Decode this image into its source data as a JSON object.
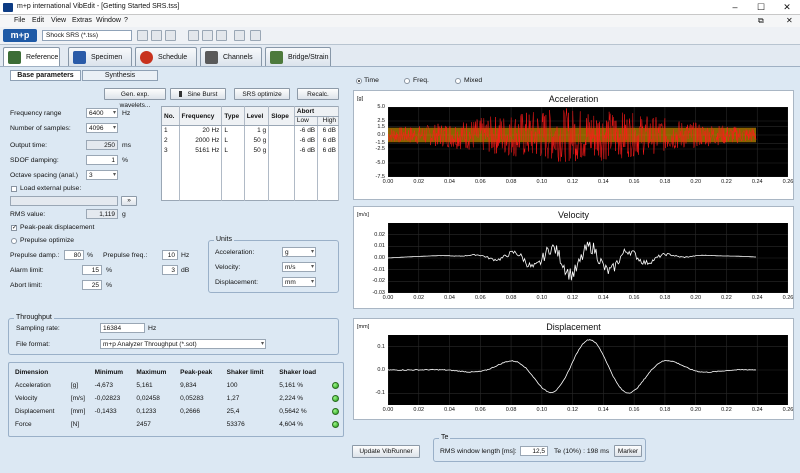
{
  "window": {
    "title": "m+p international VibEdit - [Getting Started SRS.tss]",
    "min": "–",
    "max": "☐",
    "close": "✕",
    "restore": "⧉",
    "mdi_close": "✕"
  },
  "menu": [
    "File",
    "Edit",
    "View",
    "Extras",
    "Window",
    "?"
  ],
  "toolbar": {
    "logo": "m+p",
    "combo": "Shock SRS (*.tss)"
  },
  "nav_tabs": [
    {
      "label": "Reference",
      "icon": "reference-icon"
    },
    {
      "label": "Specimen",
      "icon": "specimen-icon"
    },
    {
      "label": "Schedule",
      "icon": "schedule-icon"
    },
    {
      "label": "Channels",
      "icon": "channels-icon"
    },
    {
      "label": "Bridge/Strain",
      "icon": "bridge-strain-icon"
    }
  ],
  "subtabs": {
    "base": "Base parameters",
    "synthesis": "Synthesis"
  },
  "actions": {
    "gen_wavelets": "Gen. exp. wavelets...",
    "sine_burst": "Sine Burst",
    "srs_optimize": "SRS optimize",
    "recalc": "Recalc."
  },
  "params": {
    "freq_range_label": "Frequency range",
    "freq_range_value": "6400",
    "freq_range_unit": "Hz",
    "samples_label": "Number of samples:",
    "samples_value": "4096",
    "output_time_label": "Output time:",
    "output_time_value": "250",
    "output_time_unit": "ms",
    "sdof_label": "SDOF damping:",
    "sdof_value": "1",
    "sdof_unit": "%",
    "octave_label": "Octave spacing (anal.)",
    "octave_value": "3",
    "load_pulse_label": "Load external pulse:",
    "rms_label": "RMS value:",
    "rms_value": "1,119",
    "rms_unit": "g",
    "peak_label": "Peak-peak displacement",
    "prepulse_opt_label": "Prepulse optimize",
    "prepulse_damp_label": "Prepulse damp.:",
    "prepulse_damp_value": "80",
    "prepulse_damp_unit": "%",
    "prepulse_freq_label": "Prepulse freq.:",
    "prepulse_freq_value": "10",
    "prepulse_freq_unit": "Hz",
    "alarm_label": "Alarm limit:",
    "alarm_value": "15",
    "alarm_unit": "%",
    "alarm_db_value": "3",
    "alarm_db_unit": "dB",
    "abort_label": "Abort limit:",
    "abort_value": "25",
    "abort_unit": "%"
  },
  "units": {
    "title": "Units",
    "acc_label": "Acceleration:",
    "acc_value": "g",
    "vel_label": "Velocity:",
    "vel_value": "m/s",
    "disp_label": "Displacement:",
    "disp_value": "mm"
  },
  "band_table": {
    "headers": [
      "No.",
      "Frequency",
      "Type",
      "Level",
      "Slope",
      "Abort"
    ],
    "subheaders": [
      "Low",
      "High"
    ],
    "rows": [
      [
        "1",
        "20 Hz",
        "L",
        "1 g",
        "",
        "-6 dB",
        "6 dB"
      ],
      [
        "2",
        "2000 Hz",
        "L",
        "50 g",
        "",
        "-6 dB",
        "6 dB"
      ],
      [
        "3",
        "5161 Hz",
        "L",
        "50 g",
        "",
        "-6 dB",
        "6 dB"
      ]
    ]
  },
  "throughput": {
    "title": "Throughput",
    "rate_label": "Sampling rate:",
    "rate_value": "16384",
    "rate_unit": "Hz",
    "format_label": "File format:",
    "format_value": "m+p Analyzer Throughput (*.sot)"
  },
  "dim_table": {
    "headers": [
      "Dimension",
      "",
      "Minimum",
      "Maximum",
      "Peak-peak",
      "Shaker limit",
      "Shaker load"
    ],
    "rows": [
      [
        "Acceleration",
        "[g]",
        "-4,673",
        "5,161",
        "9,834",
        "100",
        "5,161 %"
      ],
      [
        "Velocity",
        "[m/s]",
        "-0,02823",
        "0,02458",
        "0,05283",
        "1,27",
        "2,224 %"
      ],
      [
        "Displacement",
        "[mm]",
        "-0,1433",
        "0,1233",
        "0,2666",
        "25,4",
        "0,5642 %"
      ],
      [
        "Force",
        "[N]",
        "",
        "2457",
        "",
        "53376",
        "4,604 %"
      ]
    ]
  },
  "view_mode": {
    "time": "Time",
    "freq": "Freq.",
    "mixed": "Mixed",
    "selected": "Time"
  },
  "charts": [
    {
      "title": "Acceleration",
      "unit": "[g]",
      "yticks": [
        "5.0",
        "2.5",
        "1.5",
        "0.0",
        "-1.5",
        "-2.5",
        "-5.0",
        "-7.5"
      ],
      "ylim": [
        -7.5,
        5.0
      ]
    },
    {
      "title": "Velocity",
      "unit": "[m/s]",
      "yticks": [
        "0.02",
        "0.01",
        "0.00",
        "-0.01",
        "-0.02",
        "-0.03"
      ],
      "ylim": [
        -0.03,
        0.03
      ]
    },
    {
      "title": "Displacement",
      "unit": "[mm]",
      "yticks": [
        "0.1",
        "0.0",
        "-0.1"
      ],
      "ylim": [
        -0.15,
        0.15
      ]
    }
  ],
  "xticks": [
    "0.00",
    "0.02",
    "0.04",
    "0.06",
    "0.08",
    "0.10",
    "0.12",
    "0.14",
    "0.16",
    "0.18",
    "0.20",
    "0.22",
    "0.24",
    "0.26"
  ],
  "xlim": [
    0.0,
    0.26
  ],
  "bottom": {
    "update": "Update VibRunner",
    "te_title": "Te",
    "rms_win_label": "RMS window length [ms]:",
    "rms_win_value": "12,5",
    "te_label": "Te (10%) : 198 ms",
    "marker": "Marker"
  },
  "colors": {
    "accent": "#1f5aa6",
    "bg": "#dce8f3",
    "plot_bg": "#000000",
    "acc_trace": "#ff1a1a",
    "acc_env": "#ffb400",
    "trace": "#ffffff",
    "led": "#2ab81a"
  }
}
